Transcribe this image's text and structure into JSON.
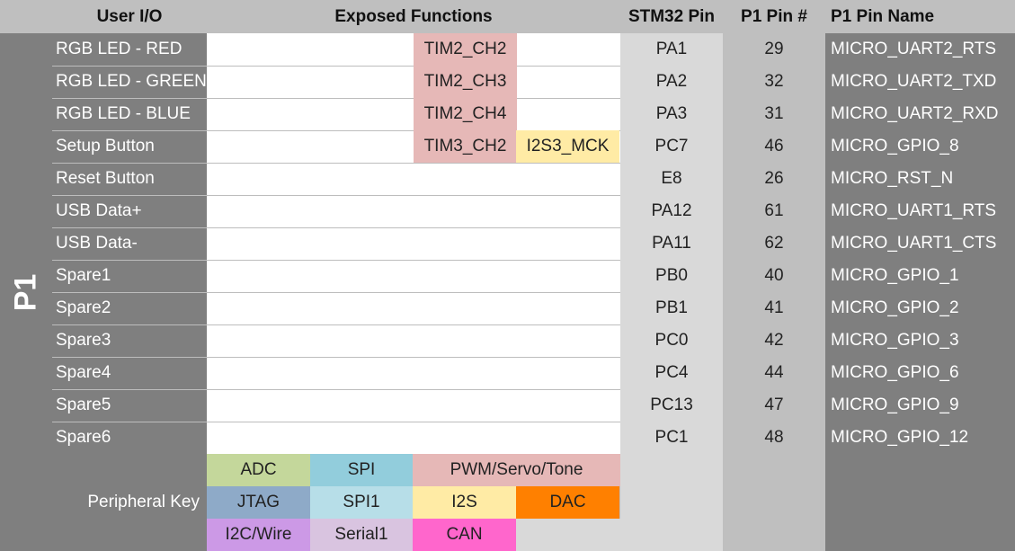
{
  "headers": {
    "user_io": "User I/O",
    "exposed_functions": "Exposed Functions",
    "stm32_pin": "STM32 Pin",
    "p1_pin_num": "P1 Pin #",
    "p1_pin_name": "P1 Pin Name"
  },
  "group_label": "P1",
  "rows": [
    {
      "io": "RGB LED - RED",
      "stm": "PA1",
      "num": "29",
      "name": "MICRO_UART2_RTS"
    },
    {
      "io": "RGB LED - GREEN",
      "stm": "PA2",
      "num": "32",
      "name": "MICRO_UART2_TXD"
    },
    {
      "io": "RGB LED - BLUE",
      "stm": "PA3",
      "num": "31",
      "name": "MICRO_UART2_RXD"
    },
    {
      "io": "Setup Button",
      "stm": "PC7",
      "num": "46",
      "name": "MICRO_GPIO_8"
    },
    {
      "io": "Reset Button",
      "stm": "E8",
      "num": "26",
      "name": "MICRO_RST_N"
    },
    {
      "io": "USB Data+",
      "stm": "PA12",
      "num": "61",
      "name": "MICRO_UART1_RTS"
    },
    {
      "io": "USB Data-",
      "stm": "PA11",
      "num": "62",
      "name": "MICRO_UART1_CTS"
    },
    {
      "io": "Spare1",
      "stm": "PB0",
      "num": "40",
      "name": "MICRO_GPIO_1"
    },
    {
      "io": "Spare2",
      "stm": "PB1",
      "num": "41",
      "name": "MICRO_GPIO_2"
    },
    {
      "io": "Spare3",
      "stm": "PC0",
      "num": "42",
      "name": "MICRO_GPIO_3"
    },
    {
      "io": "Spare4",
      "stm": "PC4",
      "num": "44",
      "name": "MICRO_GPIO_6"
    },
    {
      "io": "Spare5",
      "stm": "PC13",
      "num": "47",
      "name": "MICRO_GPIO_9"
    },
    {
      "io": "Spare6",
      "stm": "PC1",
      "num": "48",
      "name": "MICRO_GPIO_12"
    }
  ],
  "functions": [
    {
      "row": 0,
      "label": "TIM2_CH2",
      "color": "#e6b8b7"
    },
    {
      "row": 1,
      "label": "TIM2_CH3",
      "color": "#e6b8b7"
    },
    {
      "row": 2,
      "label": "TIM2_CH4",
      "color": "#e6b8b7"
    },
    {
      "row": 3,
      "label": "TIM3_CH2",
      "color": "#e6b8b7"
    },
    {
      "row": 3,
      "label": "I2S3_MCK",
      "color": "#ffeba5"
    }
  ],
  "key": {
    "label": "Peripheral Key",
    "items": [
      {
        "label": "ADC",
        "color": "#c4d79b"
      },
      {
        "label": "SPI",
        "color": "#92cddc"
      },
      {
        "label": "PWM/Servo/Tone",
        "color": "#e6b8b7"
      },
      {
        "label": "JTAG",
        "color": "#8eaac8"
      },
      {
        "label": "SPI1",
        "color": "#b7dee8"
      },
      {
        "label": "I2S",
        "color": "#ffeba5"
      },
      {
        "label": "DAC",
        "color": "#ff8000"
      },
      {
        "label": "I2C/Wire",
        "color": "#cc99e6"
      },
      {
        "label": "Serial1",
        "color": "#d9c4e0"
      },
      {
        "label": "CAN",
        "color": "#ff66cc"
      }
    ]
  }
}
